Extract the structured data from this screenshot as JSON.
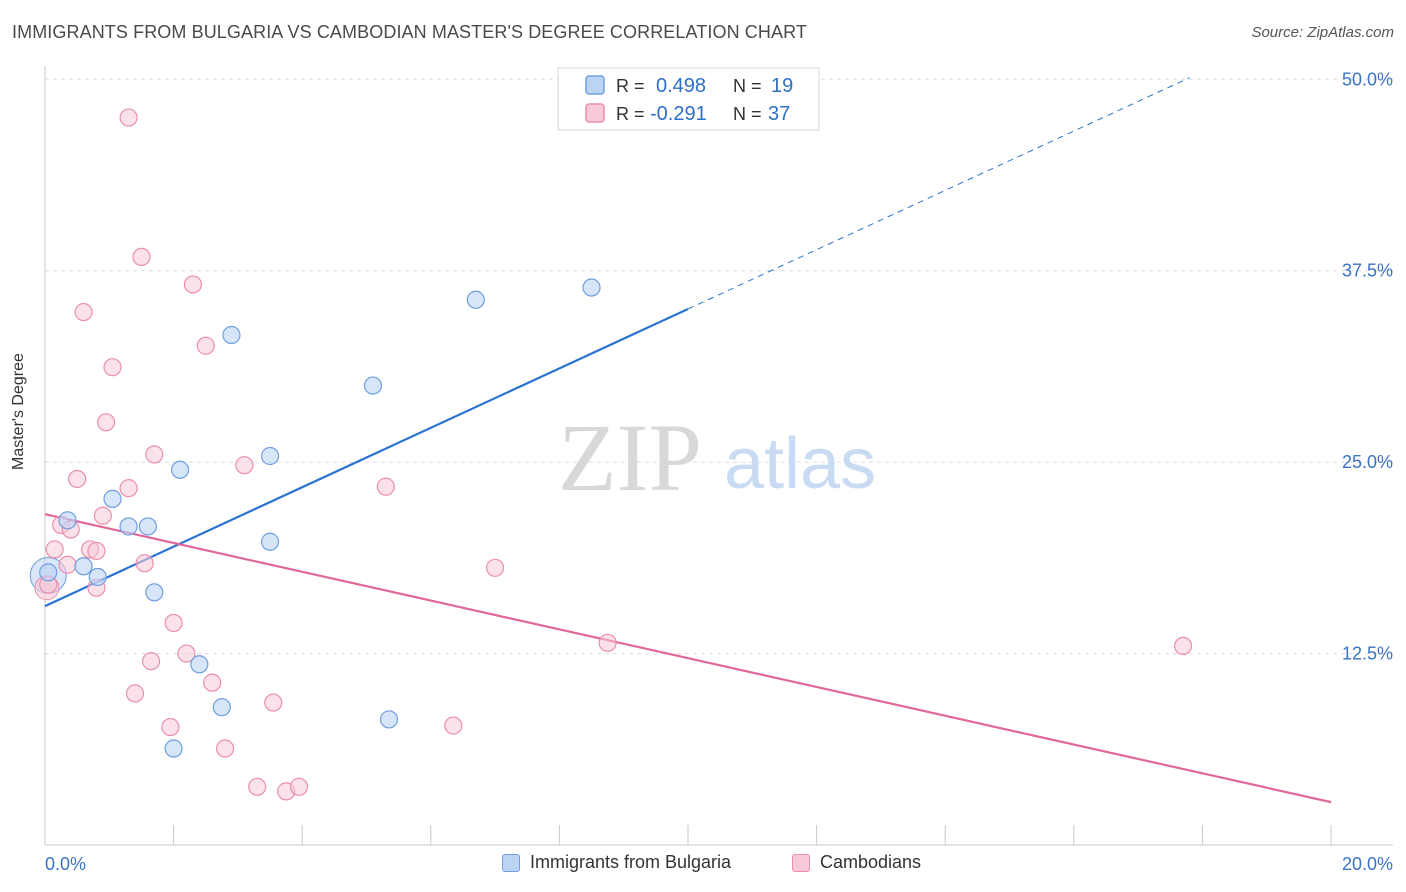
{
  "title": "IMMIGRANTS FROM BULGARIA VS CAMBODIAN MASTER'S DEGREE CORRELATION CHART",
  "source": "Source: ZipAtlas.com",
  "watermark": {
    "zip": "ZIP",
    "atlas": "atlas"
  },
  "colors": {
    "blue": "#6f9fe0",
    "blue_fill": "#bcd4f4",
    "blue_line": "#2a73d0",
    "pink": "#eb8fac",
    "pink_fill": "#f8c9d7",
    "pink_line": "#e0689a",
    "tick_text": "#3a74c4"
  },
  "legend": {
    "rows": [
      {
        "r_label": "R =",
        "r_value": "0.498",
        "n_label": "N =",
        "n_value": "19"
      },
      {
        "r_label": "R =",
        "r_value": "-0.291",
        "n_label": "N =",
        "n_value": "37"
      }
    ]
  },
  "bottom_legend": {
    "items": [
      "Immigrants from Bulgaria",
      "Cambodians"
    ]
  },
  "chart_data": {
    "type": "scatter",
    "title": "IMMIGRANTS FROM BULGARIA VS CAMBODIAN MASTER'S DEGREE CORRELATION CHART",
    "ylabel": "Master's Degree",
    "xlabel": "",
    "xlim": [
      0,
      20
    ],
    "ylim": [
      0,
      52
    ],
    "x_tick_labels": [
      "0.0%",
      "20.0%"
    ],
    "y_ticks": [
      12.5,
      25.0,
      37.5,
      50.0
    ],
    "y_tick_labels": [
      "12.5%",
      "25.0%",
      "37.5%",
      "50.0%"
    ],
    "grid": true,
    "legend_position": "top-center",
    "series": [
      {
        "name": "Immigrants from Bulgaria",
        "r": 0.498,
        "n": 19,
        "points": [
          [
            0.05,
            17.8
          ],
          [
            0.35,
            21.2
          ],
          [
            0.6,
            18.2
          ],
          [
            0.82,
            17.5
          ],
          [
            1.05,
            22.6
          ],
          [
            1.3,
            20.8
          ],
          [
            1.6,
            20.8
          ],
          [
            1.7,
            16.5
          ],
          [
            2.1,
            24.5
          ],
          [
            2.4,
            11.8
          ],
          [
            2.75,
            9.0
          ],
          [
            2.9,
            33.3
          ],
          [
            3.5,
            19.8
          ],
          [
            3.5,
            25.4
          ],
          [
            5.1,
            30.0
          ],
          [
            6.7,
            35.6
          ],
          [
            8.5,
            36.4
          ],
          [
            5.35,
            8.2
          ],
          [
            2.0,
            6.3
          ]
        ],
        "trend": {
          "x0": 0.0,
          "y0": 15.6,
          "x1": 10.0,
          "y1": 35.0,
          "dashed_to_x": 17.8,
          "dashed_to_y": 50.1
        }
      },
      {
        "name": "Cambodians",
        "r": -0.291,
        "n": 37,
        "points": [
          [
            0.05,
            17.0
          ],
          [
            0.15,
            19.3
          ],
          [
            0.25,
            20.9
          ],
          [
            0.35,
            18.3
          ],
          [
            0.4,
            20.6
          ],
          [
            0.5,
            23.9
          ],
          [
            0.6,
            34.8
          ],
          [
            0.7,
            19.3
          ],
          [
            0.8,
            16.8
          ],
          [
            0.8,
            19.2
          ],
          [
            0.9,
            21.5
          ],
          [
            0.95,
            27.6
          ],
          [
            1.05,
            31.2
          ],
          [
            1.3,
            47.5
          ],
          [
            1.3,
            23.3
          ],
          [
            1.4,
            9.9
          ],
          [
            1.5,
            38.4
          ],
          [
            1.55,
            18.4
          ],
          [
            1.65,
            12.0
          ],
          [
            1.7,
            25.5
          ],
          [
            1.95,
            7.7
          ],
          [
            2.0,
            14.5
          ],
          [
            2.2,
            12.5
          ],
          [
            2.3,
            36.6
          ],
          [
            2.5,
            32.6
          ],
          [
            2.6,
            10.6
          ],
          [
            2.8,
            6.3
          ],
          [
            3.1,
            24.8
          ],
          [
            3.3,
            3.8
          ],
          [
            3.55,
            9.3
          ],
          [
            3.75,
            3.5
          ],
          [
            3.95,
            3.8
          ],
          [
            5.3,
            23.4
          ],
          [
            6.35,
            7.8
          ],
          [
            7.0,
            18.1
          ],
          [
            8.75,
            13.2
          ],
          [
            17.7,
            13.0
          ]
        ],
        "trend": {
          "x0": 0.0,
          "y0": 21.6,
          "x1": 20.0,
          "y1": 2.8
        }
      }
    ]
  }
}
